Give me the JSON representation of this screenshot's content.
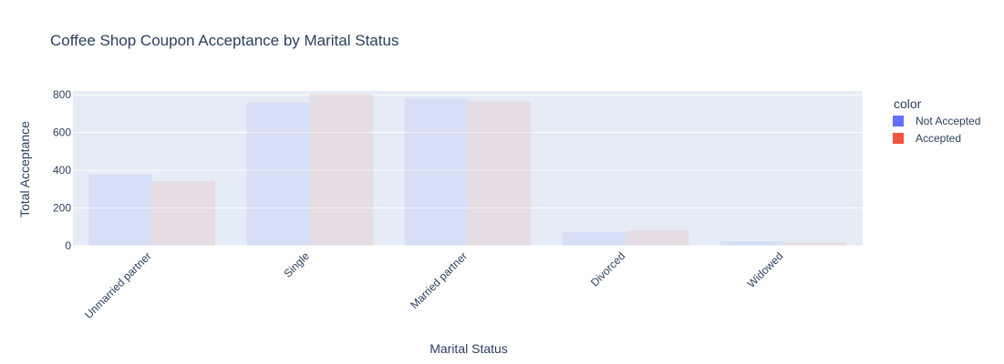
{
  "chart_data": {
    "type": "bar",
    "title": "Coffee Shop Coupon Acceptance by Marital Status",
    "xlabel": "Marital Status",
    "ylabel": "Total Acceptance",
    "categories": [
      "Unmarried partner",
      "Single",
      "Married partner",
      "Divorced",
      "Widowed"
    ],
    "series": [
      {
        "name": "Not Accepted",
        "values": [
          377,
          759,
          781,
          71,
          23
        ],
        "color": "#636efa"
      },
      {
        "name": "Accepted",
        "values": [
          342,
          805,
          766,
          80,
          17
        ],
        "color": "#ef553b"
      }
    ],
    "ylim": [
      0,
      820
    ],
    "yticks": [
      0,
      200,
      400,
      600,
      800
    ],
    "grid": true,
    "legend": {
      "title": "color",
      "placement": "right"
    },
    "colors": {
      "plot_background": "#e5ecf6"
    }
  }
}
